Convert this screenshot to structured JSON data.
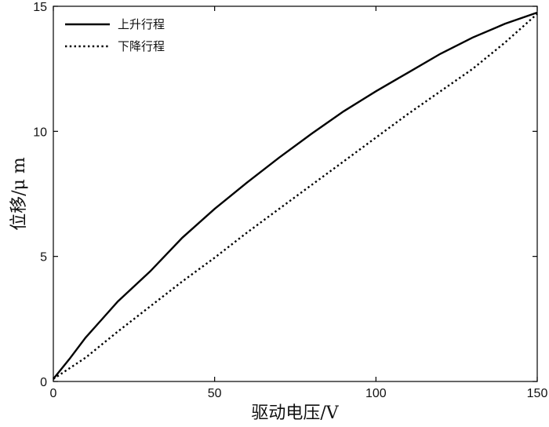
{
  "chart_data": {
    "type": "line",
    "xlabel": "驱动电压/V",
    "ylabel": "位移/μ m",
    "xlim": [
      0,
      150
    ],
    "ylim": [
      0,
      15
    ],
    "x_ticks": [
      0,
      50,
      100,
      150
    ],
    "y_ticks": [
      0,
      5,
      10,
      15
    ],
    "grid": false,
    "legend": "top-left",
    "series": [
      {
        "name": "上升行程",
        "style": "solid",
        "color": "#000000",
        "x": [
          0,
          5,
          10,
          20,
          30,
          40,
          50,
          60,
          70,
          80,
          90,
          100,
          110,
          120,
          130,
          140,
          150
        ],
        "y": [
          0.1,
          0.9,
          1.75,
          3.2,
          4.4,
          5.75,
          6.9,
          7.95,
          8.95,
          9.9,
          10.8,
          11.6,
          12.35,
          13.1,
          13.75,
          14.3,
          14.75
        ]
      },
      {
        "name": "下降行程",
        "style": "dotted",
        "color": "#000000",
        "x": [
          0,
          10,
          20,
          30,
          40,
          50,
          60,
          70,
          80,
          90,
          100,
          110,
          120,
          130,
          140,
          150
        ],
        "y": [
          0.1,
          0.95,
          2.0,
          3.0,
          4.0,
          4.95,
          5.95,
          6.9,
          7.85,
          8.8,
          9.75,
          10.7,
          11.6,
          12.5,
          13.55,
          14.7
        ]
      }
    ]
  }
}
